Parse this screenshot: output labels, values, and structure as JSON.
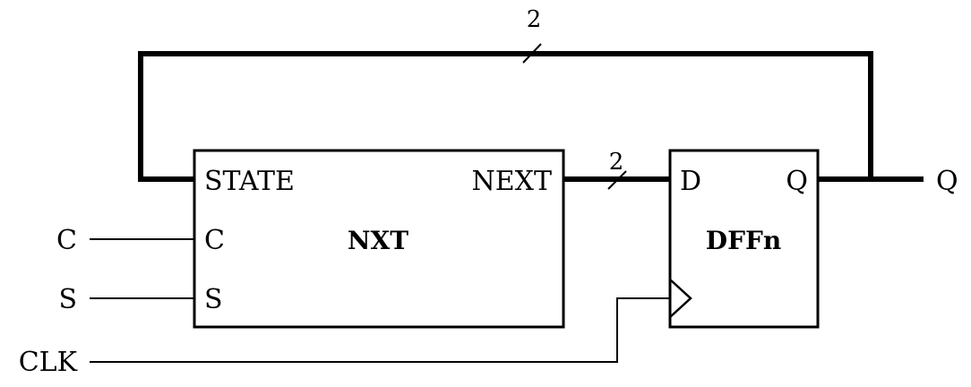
{
  "inputs": {
    "c": "C",
    "s": "S",
    "clk": "CLK"
  },
  "outputs": {
    "q": "Q"
  },
  "nxt_block": {
    "title": "NXT",
    "port_state": "STATE",
    "port_next": "NEXT",
    "port_c": "C",
    "port_s": "S"
  },
  "dff_block": {
    "title": "DFFn",
    "port_d": "D",
    "port_q": "Q"
  },
  "buses": {
    "feedback_width": "2",
    "next_width": "2"
  }
}
